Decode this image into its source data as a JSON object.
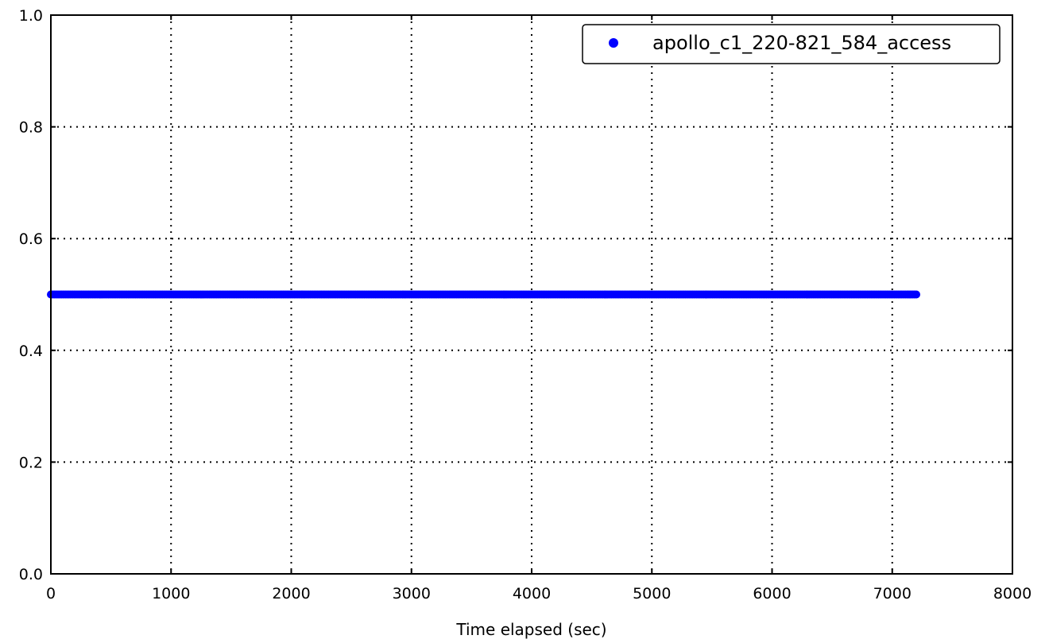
{
  "chart_data": {
    "type": "scatter",
    "title": "",
    "xlabel": "Time elapsed (sec)",
    "ylabel": "",
    "xlim": [
      0,
      8000
    ],
    "ylim": [
      0.0,
      1.0
    ],
    "x_ticks": [
      0,
      1000,
      2000,
      3000,
      4000,
      5000,
      6000,
      7000,
      8000
    ],
    "x_tick_labels": [
      "0",
      "1000",
      "2000",
      "3000",
      "4000",
      "5000",
      "6000",
      "7000",
      "8000"
    ],
    "y_ticks": [
      0.0,
      0.2,
      0.4,
      0.6,
      0.8,
      1.0
    ],
    "y_tick_labels": [
      "0.0",
      "0.2",
      "0.4",
      "0.6",
      "0.8",
      "1.0"
    ],
    "grid": true,
    "legend_position": "top-right",
    "series": [
      {
        "name": "apollo_c1_220-821_584_access",
        "color": "#0000ff",
        "x_start": 0,
        "x_end": 7200,
        "x_step": 15,
        "y": 0.5
      }
    ]
  }
}
